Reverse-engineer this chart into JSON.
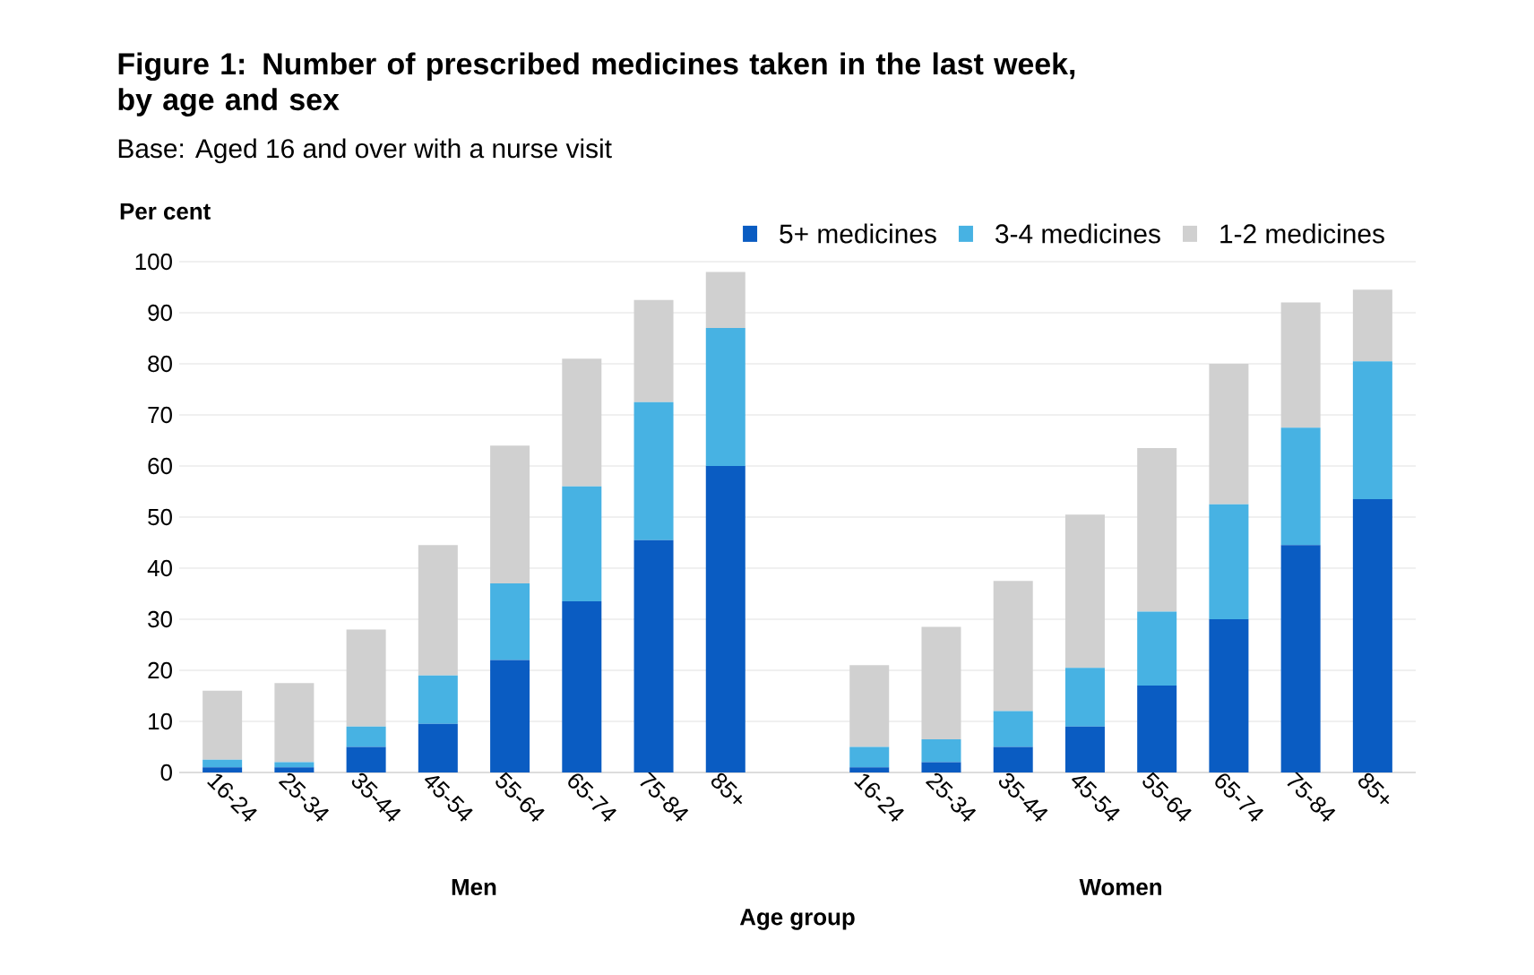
{
  "chart_data": {
    "type": "bar",
    "stacked": true,
    "title": "Figure 1: Number of prescribed medicines taken in the last week, by age and sex",
    "subtitle": "Base: Aged 16 and over with a nurse visit",
    "ylabel": "Per cent",
    "xlabel": "Age group",
    "categories": [
      "16-24",
      "25-34",
      "35-44",
      "45-54",
      "55-64",
      "65-74",
      "75-84",
      "85+",
      null,
      "16-24",
      "25-34",
      "35-44",
      "45-54",
      "55-64",
      "65-74",
      "75-84",
      "85+"
    ],
    "series": [
      {
        "name": "5+ medicines",
        "color": "#0a5cc2",
        "values": [
          1,
          1,
          5,
          9.5,
          22,
          33.5,
          45.5,
          60,
          null,
          1,
          2,
          5,
          9,
          17,
          30,
          44.5,
          53.5
        ]
      },
      {
        "name": "3-4 medicines",
        "color": "#47b2e3",
        "values": [
          1.5,
          1,
          4,
          9.5,
          15,
          22.5,
          27,
          27,
          null,
          4,
          4.5,
          7,
          11.5,
          14.5,
          22.5,
          23,
          27
        ]
      },
      {
        "name": "1-2 medicines",
        "color": "#d0d0d0",
        "values": [
          13.5,
          15.5,
          19,
          25.5,
          27,
          25,
          20,
          11,
          null,
          16,
          22,
          25.5,
          30,
          32,
          27.5,
          24.5,
          14
        ]
      }
    ],
    "annotations": [
      "Men",
      "Women"
    ],
    "ylim": [
      0,
      100
    ],
    "yticks": [
      0,
      10,
      20,
      30,
      40,
      50,
      60,
      70,
      80,
      90,
      100
    ],
    "grid": "y",
    "legend": "top"
  }
}
